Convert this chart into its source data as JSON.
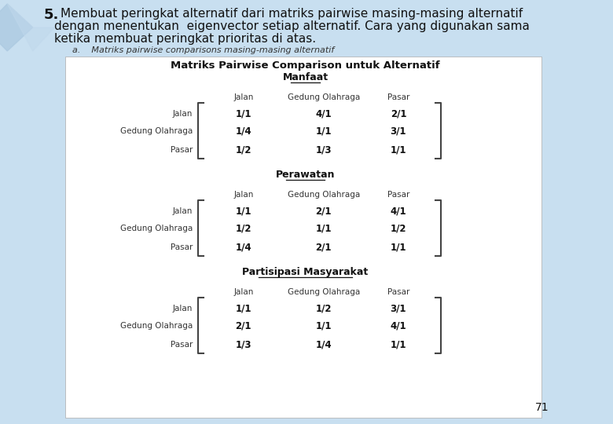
{
  "title_number": "5.",
  "title_text": "Membuat peringkat alternatif dari matriks pairwise masing-masing alternatif",
  "title_line2": "dengan menentukan  eigenvector setiap alternatif. Cara yang digunakan sama",
  "title_line3": "ketika membuat peringkat prioritas di atas.",
  "subtitle_a": "a.    Matriks pairwise comparisons masing-masing alternatif",
  "table_title": "Matriks Pairwise Comparison untuk Alternatif",
  "sections": [
    {
      "name": "Manfaat",
      "cols": [
        "Jalan",
        "Gedung Olahraga",
        "Pasar"
      ],
      "rows": [
        "Jalan",
        "Gedung Olahraga",
        "Pasar"
      ],
      "data": [
        [
          "1/1",
          "4/1",
          "2/1"
        ],
        [
          "1/4",
          "1/1",
          "3/1"
        ],
        [
          "1/2",
          "1/3",
          "1/1"
        ]
      ]
    },
    {
      "name": "Perawatan",
      "cols": [
        "Jalan",
        "Gedung Olahraga",
        "Pasar"
      ],
      "rows": [
        "Jalan",
        "Gedung Olahraga",
        "Pasar"
      ],
      "data": [
        [
          "1/1",
          "2/1",
          "4/1"
        ],
        [
          "1/2",
          "1/1",
          "1/2"
        ],
        [
          "1/4",
          "2/1",
          "1/1"
        ]
      ]
    },
    {
      "name": "Partisipasi Masyarakat",
      "cols": [
        "Jalan",
        "Gedung Olahraga",
        "Pasar"
      ],
      "rows": [
        "Jalan",
        "Gedung Olahraga",
        "Pasar"
      ],
      "data": [
        [
          "1/1",
          "1/2",
          "3/1"
        ],
        [
          "2/1",
          "1/1",
          "4/1"
        ],
        [
          "1/3",
          "1/4",
          "1/1"
        ]
      ]
    }
  ],
  "page_number": "71",
  "bg_color": "#c8dff0",
  "white_box_color": "#ffffff",
  "text_color": "#111111",
  "label_color": "#333333"
}
